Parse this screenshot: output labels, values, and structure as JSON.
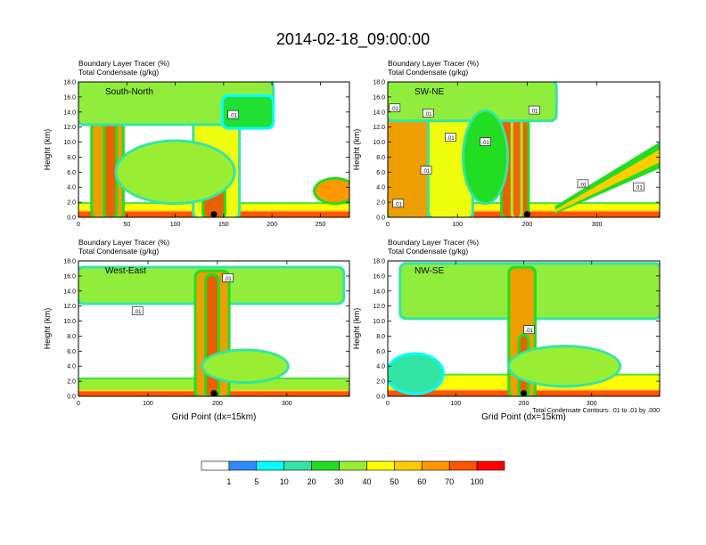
{
  "figure": {
    "title": "2014-02-18_09:00:00"
  },
  "chart_data": [
    {
      "type": "heatmap",
      "panel_label": "South-North",
      "header_line1": "Boundary Layer Tracer    (%)",
      "header_line2": "Total Condensate    (g/kg)",
      "ylabel": "Height (km)",
      "xlabel": "",
      "xlim": [
        0,
        280
      ],
      "ylim": [
        0,
        18
      ],
      "xticks": [
        0,
        50,
        100,
        150,
        200,
        250
      ],
      "yticks": [
        "0.0",
        "2.0",
        "4.0",
        "6.0",
        "8.0",
        "10.0",
        "12.0",
        "14.0",
        "16.0",
        "18.0"
      ],
      "marker_x": 140,
      "contour_labels": [
        {
          "text": ".01",
          "x": 160,
          "y": 13.6
        }
      ],
      "features": [
        {
          "type": "band",
          "x0": 0,
          "x1": 280,
          "base": 0,
          "top": 1.0,
          "value": 85
        },
        {
          "type": "band",
          "x0": 0,
          "x1": 280,
          "base": 1.0,
          "top": 2.0,
          "value": 40
        },
        {
          "type": "column",
          "x0": 15,
          "x1": 45,
          "y0": 0,
          "y1": 16,
          "value": 65
        },
        {
          "type": "column",
          "x0": 28,
          "x1": 38,
          "y0": 0,
          "y1": 16.5,
          "value": 85
        },
        {
          "type": "column",
          "x0": 120,
          "x1": 165,
          "y0": 0,
          "y1": 16,
          "value": 45
        },
        {
          "type": "column",
          "x0": 130,
          "x1": 150,
          "y0": 0,
          "y1": 8,
          "value": 80
        },
        {
          "type": "anvil",
          "x0": 0,
          "x1": 200,
          "y0": 12.5,
          "y1": 18,
          "value": 30
        },
        {
          "type": "anvil",
          "x0": 150,
          "x1": 200,
          "y0": 12,
          "y1": 16,
          "value": 25
        },
        {
          "type": "blob",
          "cx": 100,
          "cy": 6,
          "rx": 60,
          "ry": 4,
          "value": 30
        },
        {
          "type": "blob",
          "cx": 265,
          "cy": 3.5,
          "rx": 20,
          "ry": 1.5,
          "value": 60
        }
      ]
    },
    {
      "type": "heatmap",
      "panel_label": "SW-NE",
      "header_line1": "Boundary Layer Tracer    (%)",
      "header_line2": "Total Condensate    (g/kg)",
      "ylabel": "Height (km)",
      "xlabel": "",
      "xlim": [
        0,
        390
      ],
      "ylim": [
        0,
        18
      ],
      "xticks": [
        0,
        100,
        200,
        300
      ],
      "yticks": [
        "0.0",
        "2.0",
        "4.0",
        "6.0",
        "8.0",
        "10.0",
        "12.0",
        "14.0",
        "16.0",
        "18.0"
      ],
      "marker_x": 200,
      "contour_labels": [
        {
          "text": ".01",
          "x": 10,
          "y": 14.5
        },
        {
          "text": ".01",
          "x": 58,
          "y": 13.8
        },
        {
          "text": ".01",
          "x": 90,
          "y": 10.6
        },
        {
          "text": ".01",
          "x": 140,
          "y": 10.0
        },
        {
          "text": ".01",
          "x": 210,
          "y": 14.2
        },
        {
          "text": ".01",
          "x": 55,
          "y": 6.2
        },
        {
          "text": ".01",
          "x": 280,
          "y": 4.4
        },
        {
          "text": ".01",
          "x": 360,
          "y": 4.0
        },
        {
          "text": ".01",
          "x": 15,
          "y": 1.8
        }
      ],
      "features": [
        {
          "type": "band",
          "x0": 0,
          "x1": 390,
          "base": 0,
          "top": 1.0,
          "value": 85
        },
        {
          "type": "band",
          "x0": 0,
          "x1": 390,
          "base": 1.0,
          "top": 2.0,
          "value": 40
        },
        {
          "type": "column",
          "x0": 0,
          "x1": 60,
          "y0": 0,
          "y1": 17,
          "value": 65
        },
        {
          "type": "column",
          "x0": 60,
          "x1": 120,
          "y0": 0,
          "y1": 17.5,
          "value": 45
        },
        {
          "type": "column",
          "x0": 165,
          "x1": 200,
          "y0": 0,
          "y1": 17,
          "value": 70
        },
        {
          "type": "column",
          "x0": 180,
          "x1": 190,
          "y0": 0,
          "y1": 15,
          "value": 90
        },
        {
          "type": "anvil",
          "x0": 0,
          "x1": 240,
          "y0": 13,
          "y1": 18,
          "value": 35
        },
        {
          "type": "ramp",
          "x0": 240,
          "x1": 390,
          "ylow": 1.5,
          "yhigh": 10,
          "thickness": 3.5,
          "value": 50
        },
        {
          "type": "blob",
          "cx": 140,
          "cy": 8,
          "rx": 30,
          "ry": 6,
          "value": 25
        }
      ]
    },
    {
      "type": "heatmap",
      "panel_label": "West-East",
      "header_line1": "Boundary Layer Tracer    (%)",
      "header_line2": "Total Condensate    (g/kg)",
      "ylabel": "Height (km)",
      "xlabel": "Grid Point (dx=15km)",
      "xlim": [
        0,
        390
      ],
      "ylim": [
        0,
        18
      ],
      "xticks": [
        0,
        100,
        200,
        300
      ],
      "yticks": [
        "0.0",
        "2.0",
        "4.0",
        "6.0",
        "8.0",
        "10.0",
        "12.0",
        "14.0",
        "16.0",
        "18.0"
      ],
      "marker_x": 195,
      "contour_labels": [
        {
          "text": ".01",
          "x": 215,
          "y": 15.7
        },
        {
          "text": ".01",
          "x": 85,
          "y": 11.3
        }
      ],
      "features": [
        {
          "type": "band",
          "x0": 0,
          "x1": 390,
          "base": 0,
          "top": 0.9,
          "value": 85
        },
        {
          "type": "band",
          "x0": 0,
          "x1": 390,
          "base": 0.9,
          "top": 2.5,
          "value": 35
        },
        {
          "type": "anvil",
          "x0": 0,
          "x1": 380,
          "y0": 12.5,
          "y1": 17,
          "value": 35
        },
        {
          "type": "column",
          "x0": 170,
          "x1": 215,
          "y0": 0,
          "y1": 16.5,
          "value": 60
        },
        {
          "type": "column",
          "x0": 185,
          "x1": 200,
          "y0": 0,
          "y1": 16,
          "value": 85
        },
        {
          "type": "blob",
          "cx": 240,
          "cy": 4,
          "rx": 60,
          "ry": 2,
          "value": 30
        }
      ]
    },
    {
      "type": "heatmap",
      "panel_label": "NW-SE",
      "header_line1": "Boundary Layer Tracer    (%)",
      "header_line2": "Total Condensate    (g/kg)",
      "ylabel": "Height (km)",
      "xlabel": "Grid Point (dx=15km)",
      "xlim": [
        0,
        400
      ],
      "ylim": [
        0,
        18
      ],
      "xticks": [
        0,
        100,
        200,
        300
      ],
      "yticks": [
        "0.0",
        "2.0",
        "4.0",
        "6.0",
        "8.0",
        "10.0",
        "12.0",
        "14.0",
        "16.0",
        "18.0"
      ],
      "marker_x": 200,
      "contour_labels": [
        {
          "text": ".01",
          "x": 208,
          "y": 8.8
        }
      ],
      "features": [
        {
          "type": "band",
          "x0": 0,
          "x1": 400,
          "base": 0,
          "top": 1.0,
          "value": 85
        },
        {
          "type": "band",
          "x0": 0,
          "x1": 400,
          "base": 1.0,
          "top": 3.0,
          "value": 40
        },
        {
          "type": "anvil",
          "x0": 20,
          "x1": 400,
          "y0": 10.5,
          "y1": 17.5,
          "value": 35
        },
        {
          "type": "column",
          "x0": 180,
          "x1": 215,
          "y0": 0,
          "y1": 17,
          "value": 60
        },
        {
          "type": "column",
          "x0": 195,
          "x1": 205,
          "y0": 0,
          "y1": 8,
          "value": 85
        },
        {
          "type": "blob",
          "cx": 260,
          "cy": 4,
          "rx": 80,
          "ry": 2.5,
          "value": 30
        },
        {
          "type": "blob",
          "cx": 40,
          "cy": 3,
          "rx": 40,
          "ry": 2.5,
          "value": 15
        }
      ]
    }
  ],
  "footnote": "Total Condensate Contours: .01 to .01 by .000",
  "colorbar": {
    "labels": [
      "1",
      "5",
      "10",
      "20",
      "30",
      "40",
      "50",
      "60",
      "70",
      "100"
    ],
    "colors": [
      "#ffffff",
      "#2e8bff",
      "#00ffff",
      "#33e5a5",
      "#22dd22",
      "#99ee33",
      "#ffff00",
      "#ffcc00",
      "#ff9900",
      "#ff5500",
      "#ff0000"
    ]
  }
}
